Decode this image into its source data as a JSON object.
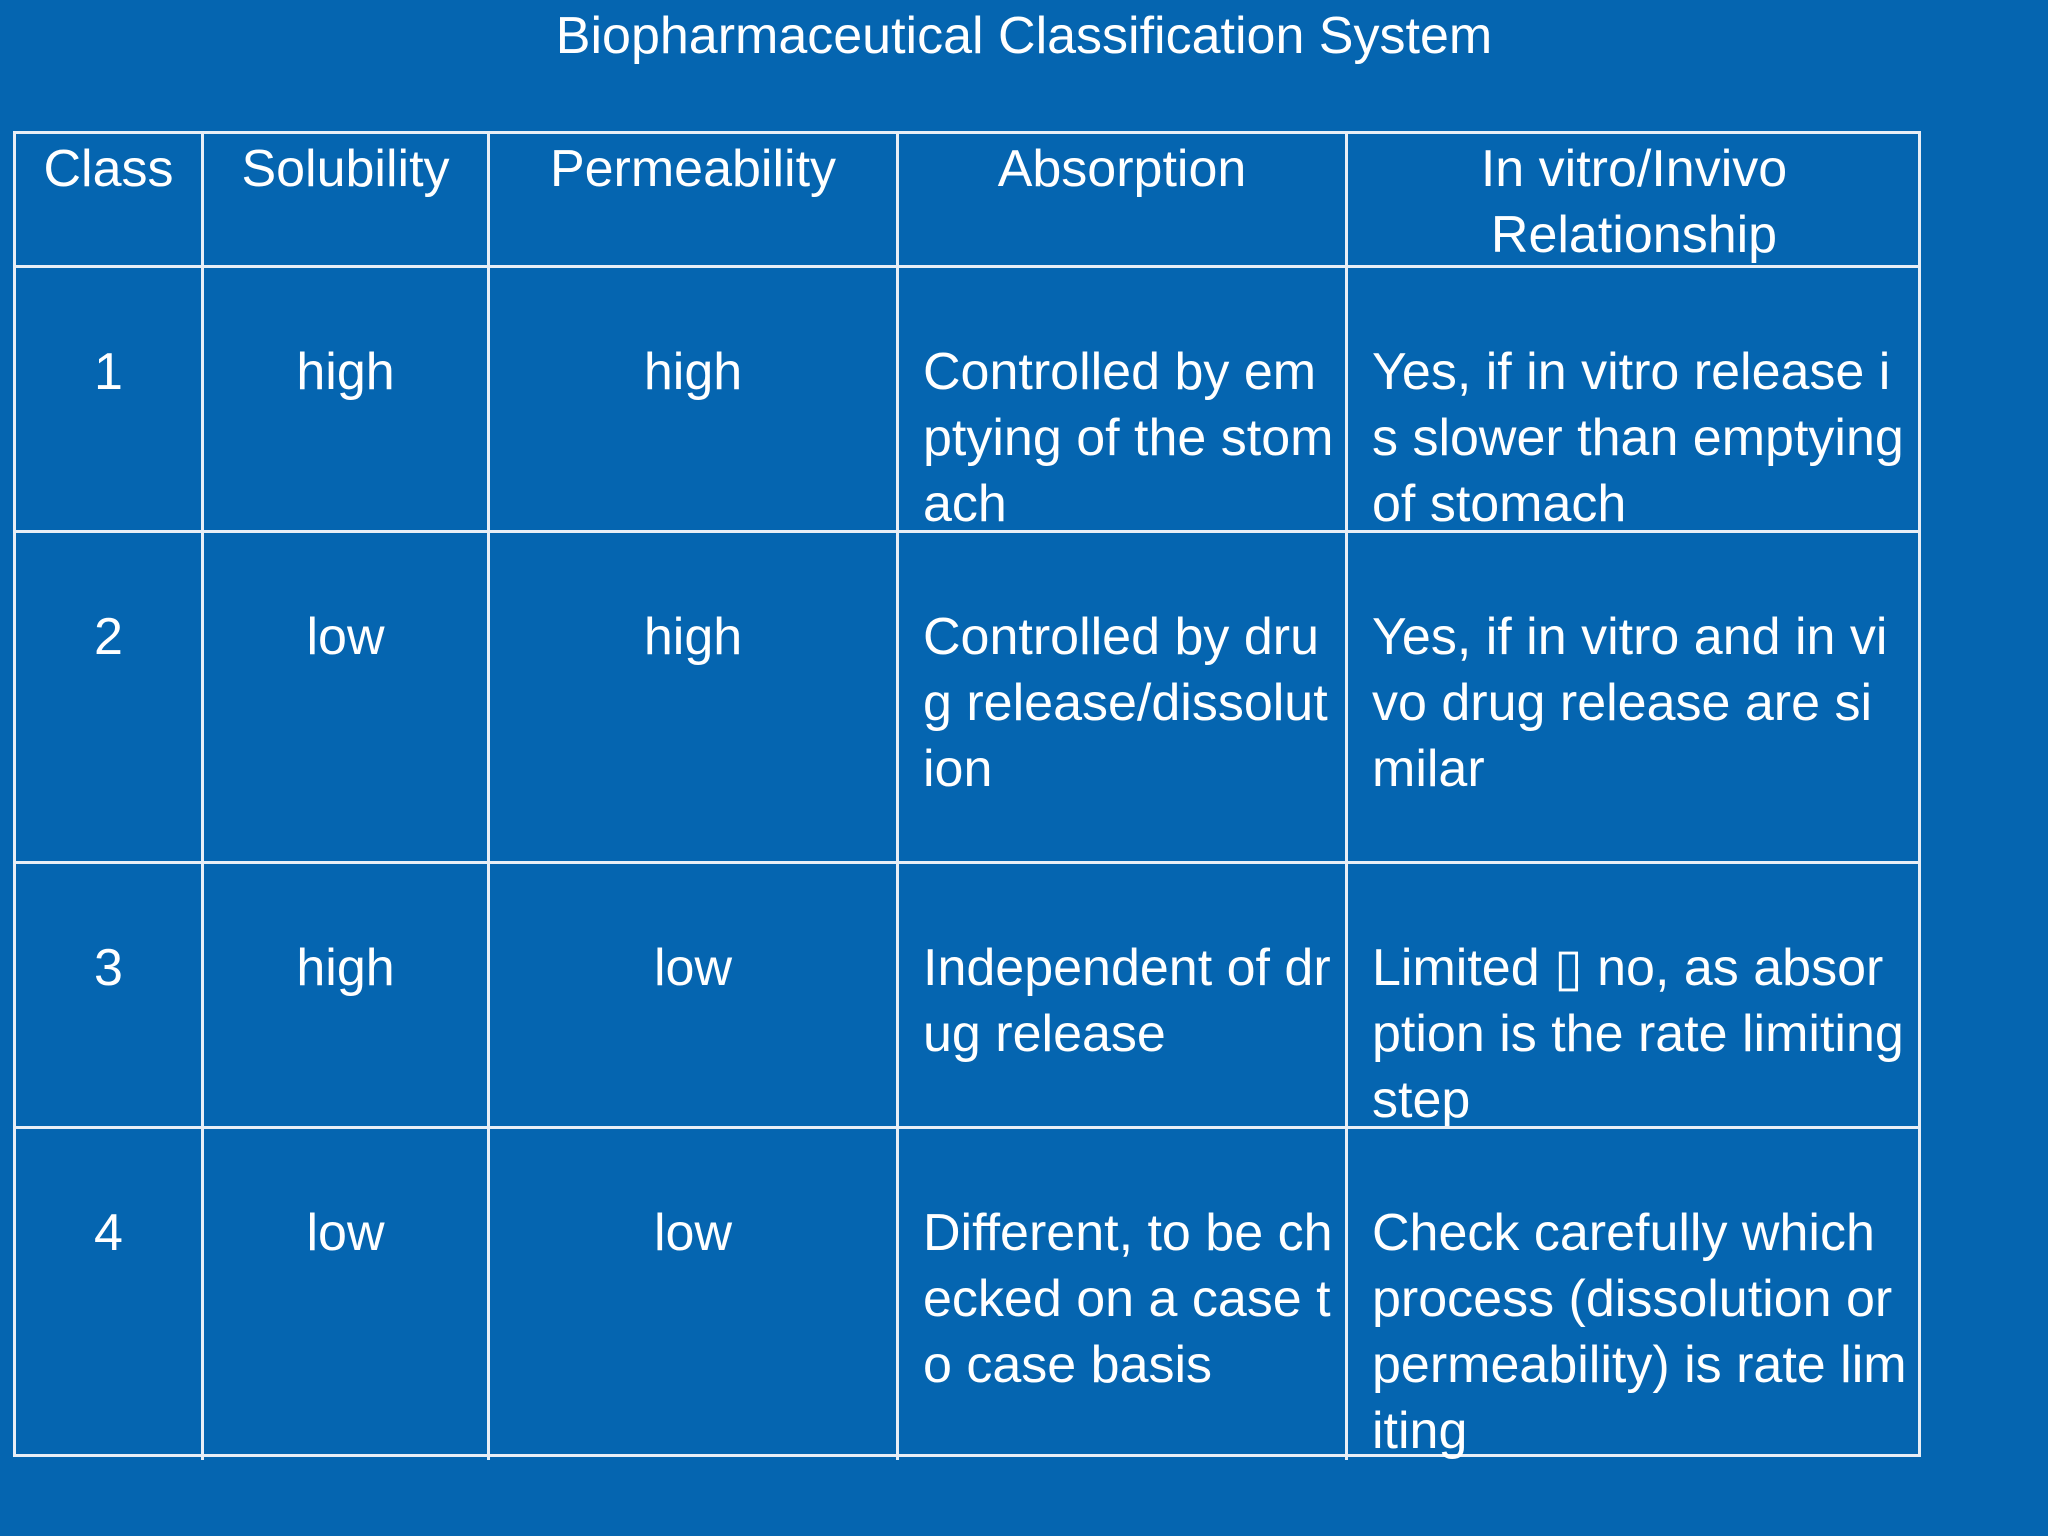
{
  "title": "Biopharmaceutical Classification System",
  "table": {
    "headers": [
      "Class",
      "Solubility",
      "Permeability",
      "Absorption",
      "In vitro/Invivo Relationship"
    ],
    "rows": [
      [
        "1",
        "high",
        "high",
        "Controlled by emptying of the stomach",
        "Yes, if in vitro release is slower than emptying of stomach"
      ],
      [
        "2",
        "low",
        "high",
        "Controlled by drug release/dissolution",
        "Yes, if in vitro and in vivo drug release are similar"
      ],
      [
        "3",
        "high",
        "low",
        "Independent of drug release",
        "Limited ▯ no, as absorption is the rate limiting step"
      ],
      [
        "4",
        "low",
        "low",
        "Different, to be checked on a case to case basis",
        "Check carefully which process (dissolution or permeability) is rate limiting"
      ]
    ]
  }
}
